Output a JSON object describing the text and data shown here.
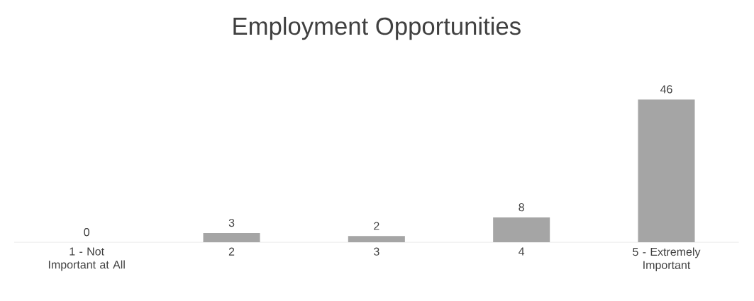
{
  "chart_data": {
    "type": "bar",
    "title": "Employment Opportunities",
    "categories": [
      "1 - Not Important at All",
      "2",
      "3",
      "4",
      "5 - Extremely Important"
    ],
    "values": [
      0,
      3,
      2,
      8,
      46
    ],
    "color": "#a5a5a5",
    "data_labels": true
  }
}
